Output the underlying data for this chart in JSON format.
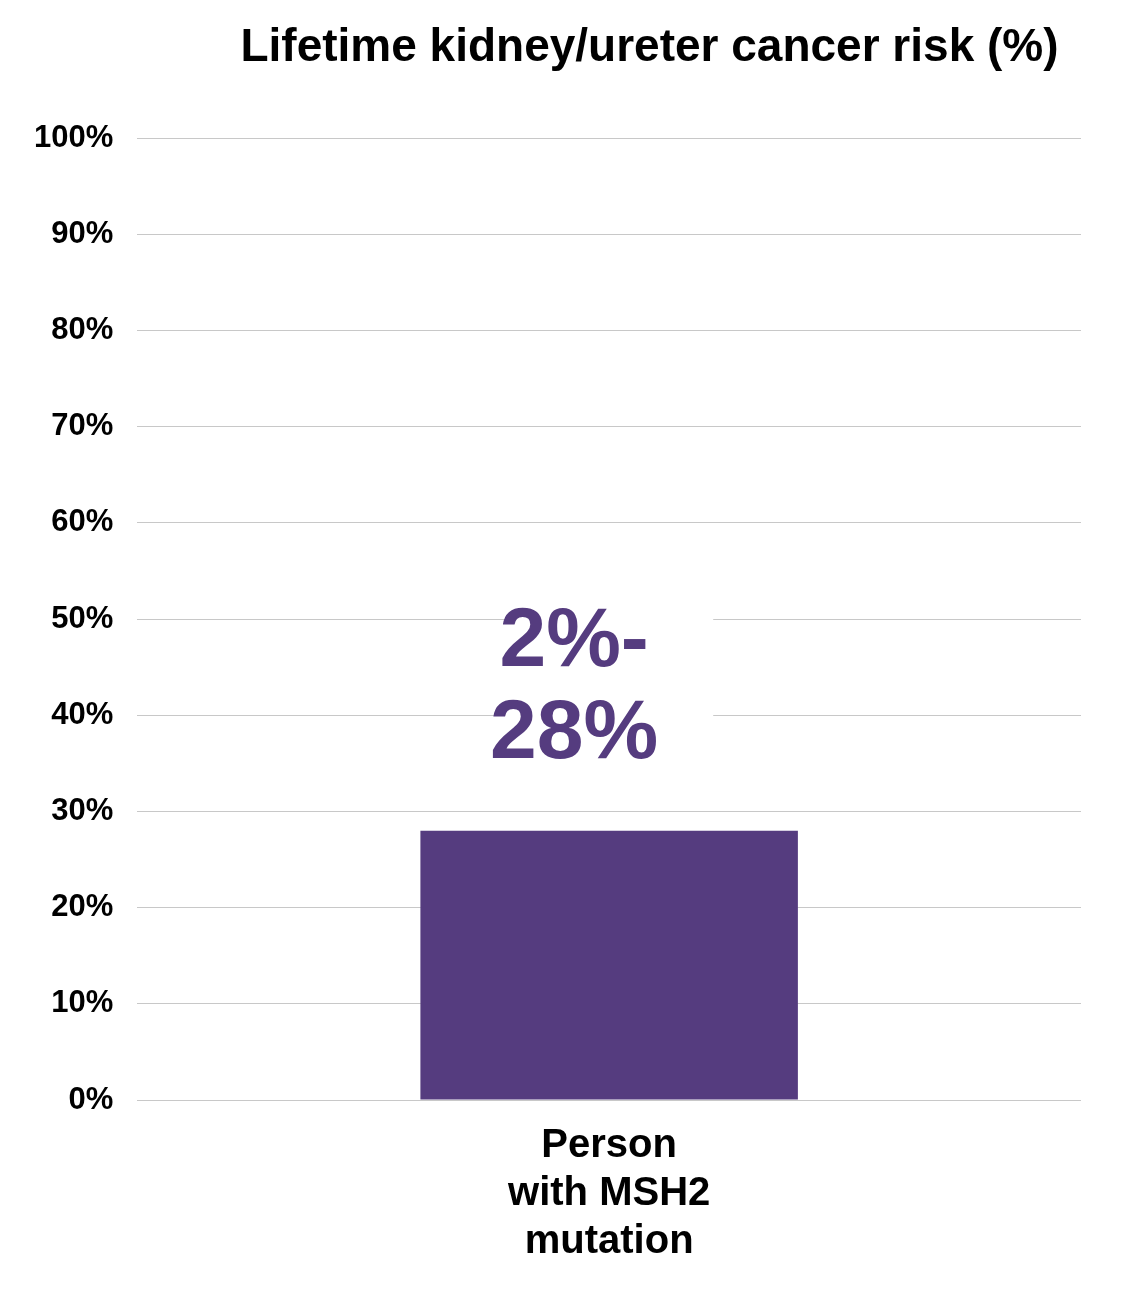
{
  "chart_data": {
    "type": "bar",
    "title": "Lifetime kidney/ureter cancer risk (%)",
    "categories": [
      "Person with MSH2 mutation"
    ],
    "values": [
      28
    ],
    "color": "#553c7f",
    "annotations": [
      {
        "text": "2%-28%",
        "x": "Person with MSH2 mutation",
        "y": 28
      }
    ],
    "ylim": [
      0,
      100
    ],
    "yticks": [
      {
        "value": 0,
        "label": "0%"
      },
      {
        "value": 10,
        "label": "10%"
      },
      {
        "value": 20,
        "label": "20%"
      },
      {
        "value": 30,
        "label": "30%"
      },
      {
        "value": 40,
        "label": "40%"
      },
      {
        "value": 50,
        "label": "50%"
      },
      {
        "value": 60,
        "label": "60%"
      },
      {
        "value": 70,
        "label": "70%"
      },
      {
        "value": 80,
        "label": "80%"
      },
      {
        "value": 90,
        "label": "90%"
      },
      {
        "value": 100,
        "label": "100%"
      }
    ],
    "grid": "y",
    "legend": false
  }
}
